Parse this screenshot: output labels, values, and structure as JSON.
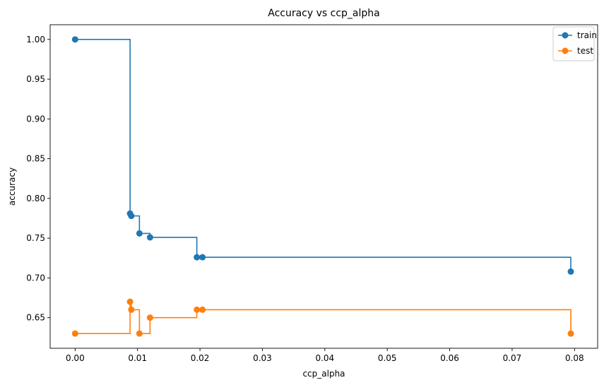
{
  "chart_data": {
    "type": "line",
    "drawstyle": "steps-post",
    "title": "Accuracy vs ccp_alpha",
    "xlabel": "ccp_alpha",
    "ylabel": "accuracy",
    "xlim": [
      -0.004,
      0.0837
    ],
    "ylim": [
      0.6115,
      1.0185
    ],
    "xticks": [
      0.0,
      0.01,
      0.02,
      0.03,
      0.04,
      0.05,
      0.06,
      0.07,
      0.08
    ],
    "xtick_labels": [
      "0.00",
      "0.01",
      "0.02",
      "0.03",
      "0.04",
      "0.05",
      "0.06",
      "0.07",
      "0.08"
    ],
    "yticks": [
      0.65,
      0.7,
      0.75,
      0.8,
      0.85,
      0.9,
      0.95,
      1.0
    ],
    "ytick_labels": [
      "0.65",
      "0.70",
      "0.75",
      "0.80",
      "0.85",
      "0.90",
      "0.95",
      "1.00"
    ],
    "grid": false,
    "legend_position": "top-right",
    "x": [
      0.0,
      0.0088,
      0.009,
      0.0103,
      0.012,
      0.0195,
      0.0204,
      0.0794
    ],
    "series": [
      {
        "name": "train",
        "color": "#1f77b4",
        "marker": "circle",
        "values": [
          1.0,
          0.781,
          0.778,
          0.756,
          0.751,
          0.726,
          0.726,
          0.708
        ]
      },
      {
        "name": "test",
        "color": "#ff7f0e",
        "marker": "circle",
        "values": [
          0.63,
          0.67,
          0.66,
          0.63,
          0.65,
          0.66,
          0.66,
          0.63
        ]
      }
    ]
  }
}
